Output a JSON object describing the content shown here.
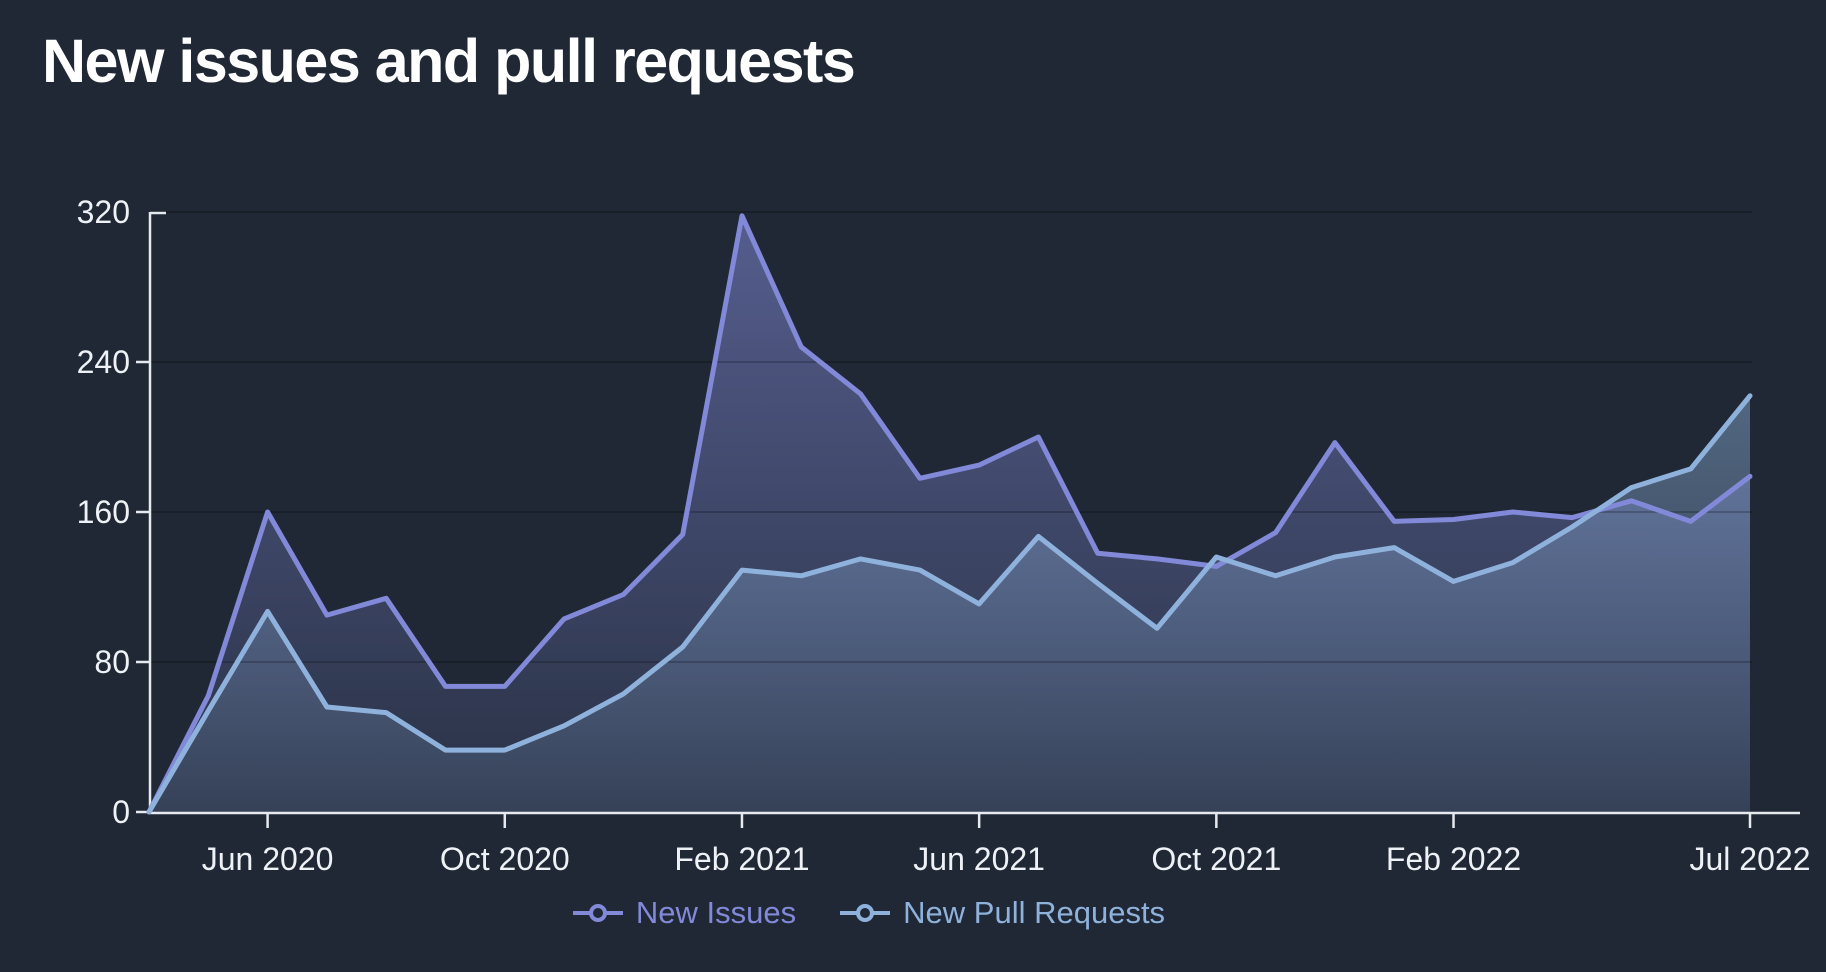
{
  "title": "New issues and pull requests",
  "colors": {
    "background": "#1f2834",
    "axis": "#e6e9ee",
    "axis_label": "#eef1f5",
    "gridline": "rgba(0,0,0,0.28)",
    "issues_accent": "#8289d8",
    "pulls_accent": "#8fb2dd"
  },
  "legend": {
    "items": [
      {
        "label": "New Issues",
        "color": "#8289d8"
      },
      {
        "label": "New Pull Requests",
        "color": "#8fb2dd"
      }
    ]
  },
  "chart_data": {
    "type": "area",
    "title": "New issues and pull requests",
    "xlabel": "",
    "ylabel": "",
    "ylim": [
      0,
      320
    ],
    "yticks": [
      0,
      80,
      160,
      240,
      320
    ],
    "grid": true,
    "legend_position": "bottom-center",
    "months": [
      "Apr 2020",
      "May 2020",
      "Jun 2020",
      "Jul 2020",
      "Aug 2020",
      "Sep 2020",
      "Oct 2020",
      "Nov 2020",
      "Dec 2020",
      "Jan 2021",
      "Feb 2021",
      "Mar 2021",
      "Apr 2021",
      "May 2021",
      "Jun 2021",
      "Jul 2021",
      "Aug 2021",
      "Sep 2021",
      "Oct 2021",
      "Nov 2021",
      "Dec 2021",
      "Jan 2022",
      "Feb 2022",
      "Mar 2022",
      "Apr 2022",
      "May 2022",
      "Jun 2022",
      "Jul 2022"
    ],
    "x_tick_labels": [
      {
        "label": "Jun 2020",
        "index": 2
      },
      {
        "label": "Oct 2020",
        "index": 6
      },
      {
        "label": "Feb 2021",
        "index": 10
      },
      {
        "label": "Jun 2021",
        "index": 14
      },
      {
        "label": "Oct 2021",
        "index": 18
      },
      {
        "label": "Feb 2022",
        "index": 22
      },
      {
        "label": "Jul 2022",
        "index": 27
      }
    ],
    "series": [
      {
        "name": "New Issues",
        "color": "#8289d8",
        "values": [
          0,
          62,
          160,
          105,
          114,
          67,
          67,
          103,
          116,
          148,
          318,
          248,
          223,
          178,
          185,
          200,
          138,
          135,
          131,
          149,
          197,
          155,
          156,
          160,
          157,
          166,
          155,
          179
        ]
      },
      {
        "name": "New Pull Requests",
        "color": "#8fb2dd",
        "values": [
          0,
          54,
          107,
          56,
          53,
          33,
          33,
          46,
          63,
          88,
          129,
          126,
          135,
          129,
          111,
          147,
          122,
          98,
          136,
          126,
          136,
          141,
          123,
          133,
          152,
          173,
          183,
          222
        ]
      }
    ]
  }
}
